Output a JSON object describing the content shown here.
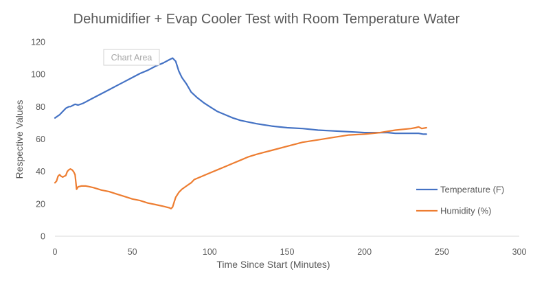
{
  "chart_data": {
    "type": "line",
    "title": "Dehumidifier + Evap Cooler Test with Room Temperature Water",
    "xlabel": "Time Since Start (Minutes)",
    "ylabel": "Respective Values",
    "xlim": [
      0,
      300
    ],
    "ylim": [
      0,
      120
    ],
    "x_ticks": [
      0,
      50,
      100,
      150,
      200,
      250,
      300
    ],
    "y_ticks": [
      0,
      20,
      40,
      60,
      80,
      100,
      120
    ],
    "grid": false,
    "legend_position": "right",
    "tooltip": "Chart Area",
    "series": [
      {
        "name": "Temperature (F)",
        "color": "#4472c4",
        "points": [
          [
            0,
            73
          ],
          [
            3,
            75
          ],
          [
            5,
            77
          ],
          [
            7,
            79
          ],
          [
            9,
            80
          ],
          [
            10,
            80
          ],
          [
            12,
            81
          ],
          [
            13,
            81.5
          ],
          [
            15,
            81
          ],
          [
            18,
            82
          ],
          [
            20,
            83
          ],
          [
            22,
            84
          ],
          [
            25,
            85.5
          ],
          [
            30,
            88
          ],
          [
            35,
            90.5
          ],
          [
            40,
            93
          ],
          [
            45,
            95.5
          ],
          [
            50,
            98
          ],
          [
            55,
            100.5
          ],
          [
            60,
            102.5
          ],
          [
            65,
            105
          ],
          [
            70,
            107
          ],
          [
            74,
            109
          ],
          [
            76,
            110
          ],
          [
            78,
            108
          ],
          [
            80,
            102
          ],
          [
            82,
            98
          ],
          [
            85,
            94
          ],
          [
            88,
            89
          ],
          [
            92,
            85.5
          ],
          [
            96,
            82.5
          ],
          [
            100,
            80
          ],
          [
            105,
            77
          ],
          [
            110,
            75
          ],
          [
            115,
            73
          ],
          [
            120,
            71.5
          ],
          [
            130,
            69.5
          ],
          [
            140,
            68
          ],
          [
            150,
            67
          ],
          [
            160,
            66.5
          ],
          [
            170,
            65.5
          ],
          [
            180,
            65
          ],
          [
            190,
            64.5
          ],
          [
            200,
            64
          ],
          [
            210,
            64
          ],
          [
            215,
            64
          ],
          [
            220,
            63.5
          ],
          [
            230,
            63.5
          ],
          [
            235,
            63.5
          ],
          [
            238,
            63
          ],
          [
            240,
            63
          ]
        ]
      },
      {
        "name": "Humidity (%)",
        "color": "#ed7d31",
        "points": [
          [
            0,
            33
          ],
          [
            1,
            34
          ],
          [
            2,
            37
          ],
          [
            3,
            38
          ],
          [
            4,
            37
          ],
          [
            5,
            36.5
          ],
          [
            6,
            37
          ],
          [
            7,
            37.5
          ],
          [
            8,
            40
          ],
          [
            9,
            41
          ],
          [
            10,
            41.5
          ],
          [
            11,
            41
          ],
          [
            12,
            40
          ],
          [
            13,
            38
          ],
          [
            14,
            29
          ],
          [
            15,
            30.5
          ],
          [
            17,
            31
          ],
          [
            20,
            31
          ],
          [
            25,
            30
          ],
          [
            30,
            28.5
          ],
          [
            35,
            27.5
          ],
          [
            40,
            26
          ],
          [
            45,
            24.5
          ],
          [
            50,
            23
          ],
          [
            55,
            22
          ],
          [
            60,
            20.5
          ],
          [
            65,
            19.5
          ],
          [
            70,
            18.5
          ],
          [
            74,
            17.5
          ],
          [
            75,
            17
          ],
          [
            76,
            18
          ],
          [
            77,
            21
          ],
          [
            78,
            24
          ],
          [
            80,
            27
          ],
          [
            82,
            29
          ],
          [
            85,
            31
          ],
          [
            88,
            33
          ],
          [
            90,
            35
          ],
          [
            95,
            37
          ],
          [
            100,
            39
          ],
          [
            105,
            41
          ],
          [
            110,
            43
          ],
          [
            115,
            45
          ],
          [
            120,
            47
          ],
          [
            125,
            49
          ],
          [
            130,
            50.5
          ],
          [
            140,
            53
          ],
          [
            150,
            55.5
          ],
          [
            160,
            58
          ],
          [
            170,
            59.5
          ],
          [
            180,
            61
          ],
          [
            190,
            62.5
          ],
          [
            200,
            63
          ],
          [
            210,
            64
          ],
          [
            220,
            65.5
          ],
          [
            230,
            66.5
          ],
          [
            233,
            67
          ],
          [
            235,
            67.5
          ],
          [
            237,
            66.5
          ],
          [
            240,
            67
          ]
        ]
      }
    ]
  },
  "colors": {
    "axis": "#d9d9d9",
    "text": "#595959"
  }
}
